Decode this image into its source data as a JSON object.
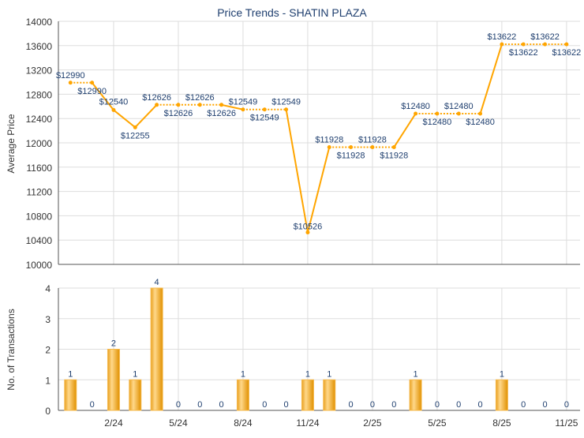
{
  "chart_data": [
    {
      "type": "line",
      "title": "Price Trends - SHATIN PLAZA",
      "ylabel": "Average Price",
      "ylim": [
        10000,
        14000
      ],
      "yticks": [
        10000,
        10400,
        10800,
        11200,
        11600,
        12000,
        12400,
        12800,
        13200,
        13600,
        14000
      ],
      "x": [
        "12/23",
        "1/24",
        "2/24",
        "3/24",
        "4/24",
        "5/24",
        "6/24",
        "7/24",
        "8/24",
        "9/24",
        "10/24",
        "11/24",
        "12/24",
        "1/25",
        "2/25",
        "3/25",
        "4/25",
        "5/25",
        "6/25",
        "7/25",
        "8/25",
        "9/25",
        "10/25",
        "11/25"
      ],
      "values": [
        12990,
        12990,
        12540,
        12255,
        12626,
        12626,
        12626,
        12626,
        12549,
        12549,
        12549,
        10526,
        11928,
        11928,
        11928,
        11928,
        12480,
        12480,
        12480,
        12480,
        13622,
        13622,
        13622,
        13622
      ],
      "labels": [
        "$12990",
        "$12990",
        "$12540",
        "$12255",
        "$12626",
        "$12626",
        "$12626",
        "$12626",
        "$12549",
        "$12549",
        "$12549",
        "$10526",
        "$11928",
        "$11928",
        "$11928",
        "$11928",
        "$12480",
        "$12480",
        "$12480",
        "$12480",
        "$13622",
        "$13622",
        "$13622",
        "$13622"
      ],
      "color": "#FFA500",
      "grid": true
    },
    {
      "type": "bar",
      "ylabel": "No. of Transactions",
      "ylim": [
        0,
        4
      ],
      "yticks": [
        0,
        1,
        2,
        3,
        4
      ],
      "x": [
        "12/23",
        "1/24",
        "2/24",
        "3/24",
        "4/24",
        "5/24",
        "6/24",
        "7/24",
        "8/24",
        "9/24",
        "10/24",
        "11/24",
        "12/24",
        "1/25",
        "2/25",
        "3/25",
        "4/25",
        "5/25",
        "6/25",
        "7/25",
        "8/25",
        "9/25",
        "10/25",
        "11/25"
      ],
      "values": [
        1,
        0,
        2,
        1,
        4,
        0,
        0,
        0,
        1,
        0,
        0,
        1,
        1,
        0,
        0,
        0,
        1,
        0,
        0,
        0,
        1,
        0,
        0,
        0
      ],
      "xticks": [
        "2/24",
        "5/24",
        "8/24",
        "11/24",
        "2/25",
        "5/25",
        "8/25",
        "11/25"
      ],
      "color": "#F0A830",
      "grid": true
    }
  ],
  "colors": {
    "label": "#1F3F6F",
    "axis_text": "#333333",
    "grid": "#DDDDDD"
  }
}
